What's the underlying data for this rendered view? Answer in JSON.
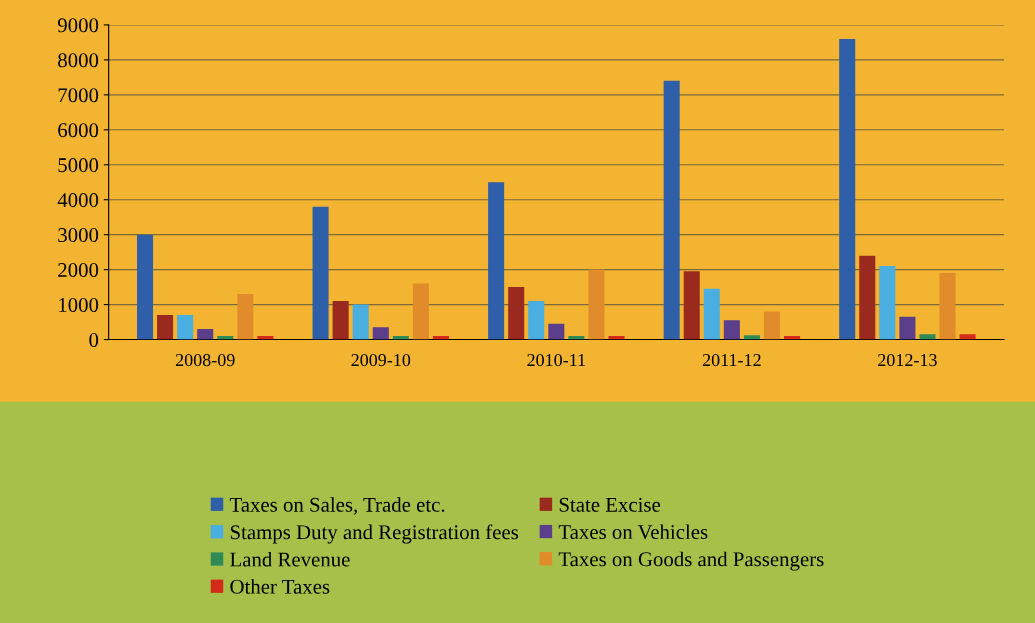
{
  "chart_data": {
    "type": "bar",
    "categories": [
      "2008-09",
      "2009-10",
      "2010-11",
      "2011-12",
      "2012-13"
    ],
    "series": [
      {
        "name": "Taxes on Sales, Trade etc.",
        "color": "#2e5fa8",
        "values": [
          3000,
          3800,
          4500,
          7400,
          8600
        ]
      },
      {
        "name": "State Excise",
        "color": "#9b2a1e",
        "values": [
          700,
          1100,
          1500,
          1950,
          2400
        ]
      },
      {
        "name": "Stamps Duty and Registration fees",
        "color": "#4aaee0",
        "values": [
          700,
          1000,
          1100,
          1450,
          2100
        ]
      },
      {
        "name": "Taxes on Vehicles",
        "color": "#5b3f8c",
        "values": [
          300,
          350,
          450,
          550,
          650
        ]
      },
      {
        "name": "Land Revenue",
        "color": "#2e8b57",
        "values": [
          100,
          100,
          100,
          120,
          150
        ]
      },
      {
        "name": "Taxes on Goods and Passengers",
        "color": "#e08c2a",
        "values": [
          1300,
          1600,
          2000,
          800,
          1900
        ]
      },
      {
        "name": "Other Taxes",
        "color": "#d42a1a",
        "values": [
          100,
          100,
          100,
          100,
          150
        ]
      }
    ],
    "ylim": [
      0,
      9000
    ],
    "yticks": [
      0,
      1000,
      2000,
      3000,
      4000,
      5000,
      6000,
      7000,
      8000,
      9000
    ],
    "grid": "y",
    "legend": "bottom"
  }
}
